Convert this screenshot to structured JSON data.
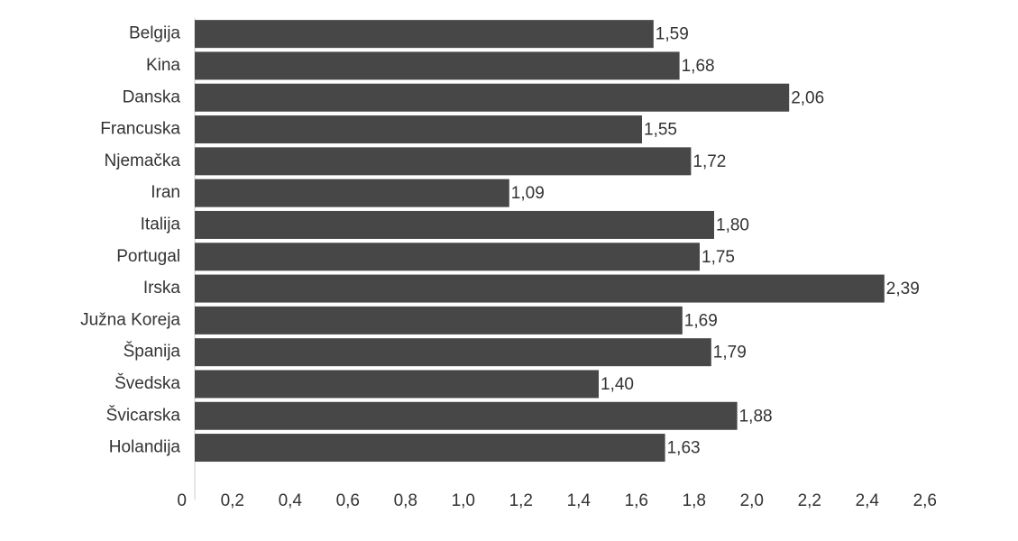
{
  "chart_data": {
    "type": "barh",
    "categories": [
      "Belgija",
      "Kina",
      "Danska",
      "Francuska",
      "Njemačka",
      "Iran",
      "Italija",
      "Portugal",
      "Irska",
      "Južna Koreja",
      "Španija",
      "Švedska",
      "Švicarska",
      "Holandija"
    ],
    "values": [
      1.59,
      1.68,
      2.06,
      1.55,
      1.72,
      1.09,
      1.8,
      1.75,
      2.39,
      1.69,
      1.79,
      1.4,
      1.88,
      1.63
    ],
    "value_labels": [
      "1,59",
      "1,68",
      "2,06",
      "1,55",
      "1,72",
      "1,09",
      "1,80",
      "1,75",
      "2,39",
      "1,69",
      "1,79",
      "1,40",
      "1,88",
      "1,63"
    ],
    "color": "#474747",
    "xlim": [
      0,
      2.6
    ],
    "xticks": [
      0,
      {
        "value": 0.2,
        "label": "0,2"
      },
      {
        "value": 0.4,
        "label": "0,4"
      },
      {
        "value": 0.6,
        "label": "0,6"
      },
      {
        "value": 0.8,
        "label": "0,8"
      },
      {
        "value": 1.0,
        "label": "1,0"
      },
      {
        "value": 1.2,
        "label": "1,2"
      },
      {
        "value": 1.4,
        "label": "1,4"
      },
      {
        "value": 1.6,
        "label": "1,6"
      },
      {
        "value": 1.8,
        "label": "1,8"
      },
      {
        "value": 2.0,
        "label": "2,0"
      },
      {
        "value": 2.2,
        "label": "2,2"
      },
      {
        "value": 2.4,
        "label": "2,4"
      },
      {
        "value": 2.6,
        "label": "2,6"
      }
    ]
  }
}
